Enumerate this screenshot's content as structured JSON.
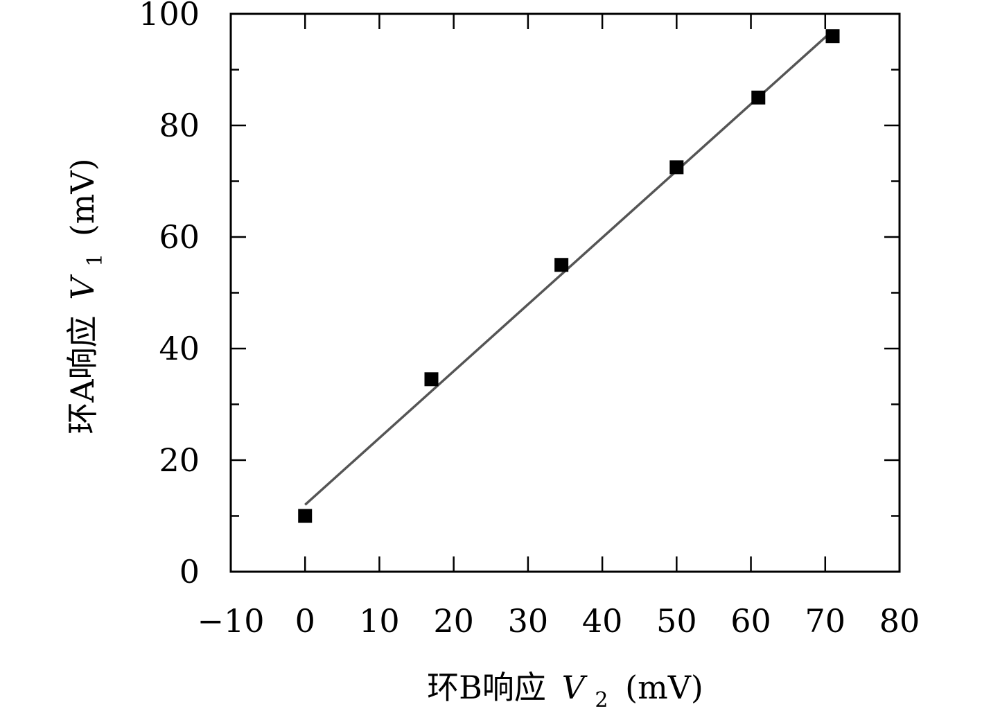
{
  "chart_data": {
    "type": "scatter",
    "xlabel": {
      "prefix": "环B响应",
      "var": "V",
      "sub": "2",
      "unit": "(mV)"
    },
    "ylabel": {
      "prefix": "环A响应",
      "var": "V",
      "sub": "1",
      "unit": "(mV)"
    },
    "xlim": [
      -10,
      80
    ],
    "ylim": [
      0,
      100
    ],
    "x_ticks": [
      -10,
      0,
      10,
      20,
      30,
      40,
      50,
      60,
      70,
      80
    ],
    "x_tick_labels": [
      "−10",
      "0",
      "10",
      "20",
      "30",
      "40",
      "50",
      "60",
      "70",
      "80"
    ],
    "y_ticks": [
      0,
      20,
      40,
      60,
      80,
      100
    ],
    "y_tick_labels": [
      "0",
      "20",
      "40",
      "60",
      "80",
      "100"
    ],
    "y_minor_step": 10,
    "grid": false,
    "series": [
      {
        "kind": "points",
        "marker": "square",
        "color": "#000000",
        "x": [
          0,
          17,
          34.5,
          50,
          61,
          71
        ],
        "y": [
          10,
          34.5,
          55,
          72.5,
          85,
          96
        ]
      },
      {
        "kind": "fit-line",
        "color": "#555555",
        "x": [
          0,
          71
        ],
        "y": [
          12,
          97
        ]
      }
    ]
  }
}
